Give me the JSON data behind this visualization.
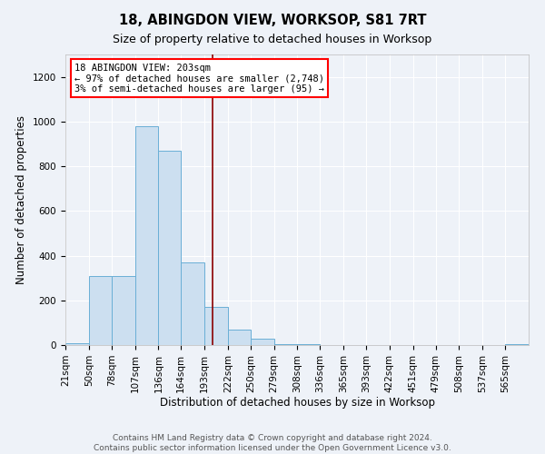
{
  "title": "18, ABINGDON VIEW, WORKSOP, S81 7RT",
  "subtitle": "Size of property relative to detached houses in Worksop",
  "xlabel": "Distribution of detached houses by size in Worksop",
  "ylabel": "Number of detached properties",
  "bin_edges": [
    21,
    50,
    78,
    107,
    136,
    164,
    193,
    222,
    250,
    279,
    308,
    336,
    365,
    393,
    422,
    451,
    479,
    508,
    537,
    565,
    594
  ],
  "bar_heights": [
    10,
    310,
    310,
    980,
    870,
    370,
    170,
    70,
    30,
    5,
    3,
    2,
    1,
    1,
    1,
    1,
    1,
    1,
    1,
    5
  ],
  "bar_color": "#ccdff0",
  "bar_edge_color": "#6aafd6",
  "ylim": [
    0,
    1300
  ],
  "yticks": [
    0,
    200,
    400,
    600,
    800,
    1000,
    1200
  ],
  "red_line_x": 203,
  "annotation_line1": "18 ABINGDON VIEW: 203sqm",
  "annotation_line2": "← 97% of detached houses are smaller (2,748)",
  "annotation_line3": "3% of semi-detached houses are larger (95) →",
  "footer_text": "Contains HM Land Registry data © Crown copyright and database right 2024.\nContains public sector information licensed under the Open Government Licence v3.0.",
  "background_color": "#eef2f8",
  "grid_color": "#ffffff",
  "title_fontsize": 10.5,
  "subtitle_fontsize": 9,
  "axis_label_fontsize": 8.5,
  "tick_fontsize": 7.5,
  "annotation_fontsize": 7.5,
  "footer_fontsize": 6.5
}
